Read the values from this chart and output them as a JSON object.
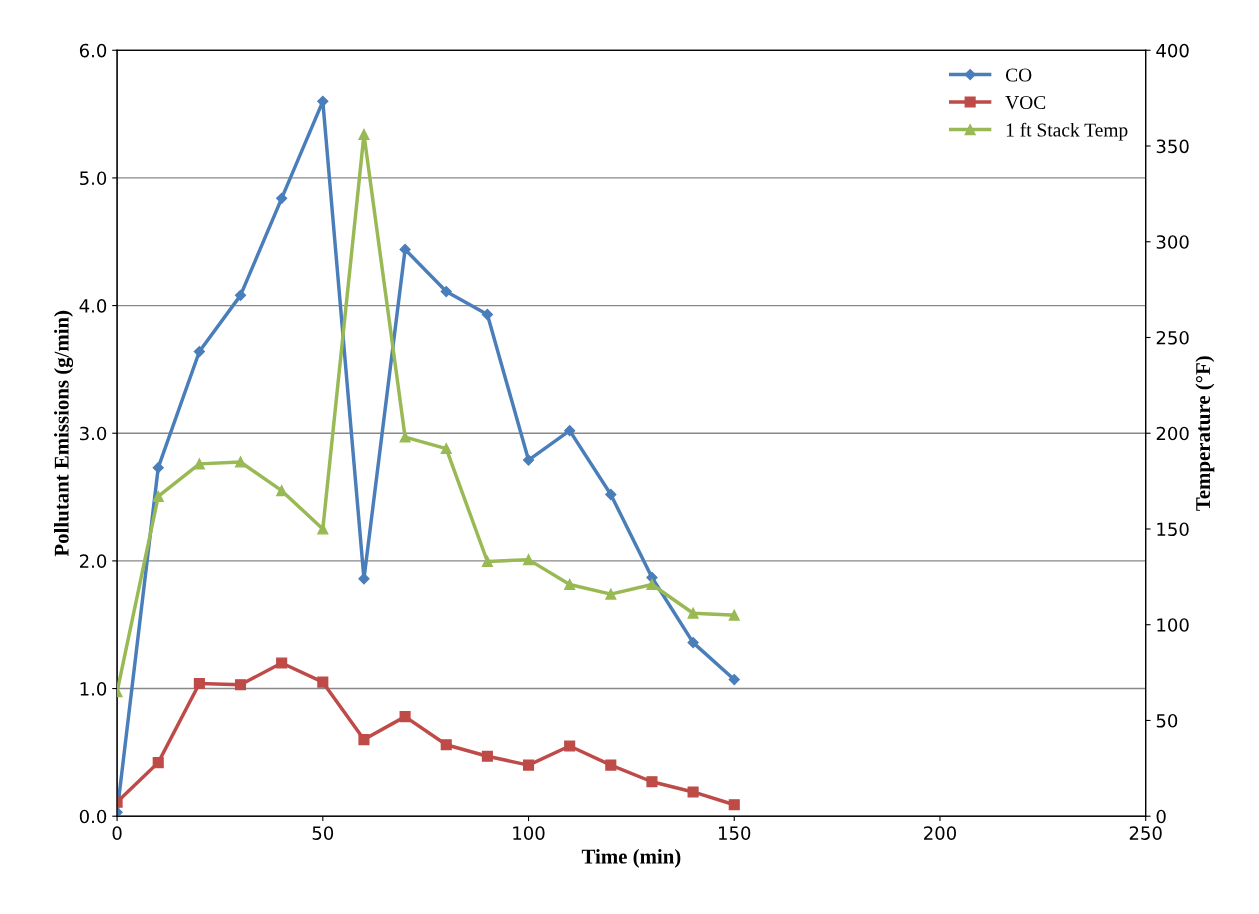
{
  "chart_data": {
    "type": "line",
    "xlabel": "Time (min)",
    "ylabel": "Pollutant Emissions (g/min)",
    "y2label": "Temperature (°F)",
    "x": [
      0,
      10,
      20,
      30,
      40,
      50,
      60,
      70,
      80,
      90,
      100,
      110,
      120,
      130,
      140,
      150
    ],
    "series": [
      {
        "name": "CO",
        "color": "#4a7ebb",
        "marker": "diamond",
        "values": [
          0.03,
          2.73,
          3.64,
          4.08,
          4.84,
          5.6,
          1.86,
          4.44,
          4.11,
          3.93,
          2.79,
          3.02,
          2.52,
          1.87,
          1.36,
          1.07
        ]
      },
      {
        "name": "VOC",
        "color": "#be4b48",
        "marker": "square",
        "values": [
          0.11,
          0.42,
          1.04,
          1.03,
          1.2,
          1.05,
          0.6,
          0.78,
          0.56,
          0.47,
          0.4,
          0.55,
          0.4,
          0.27,
          0.19,
          0.09
        ]
      },
      {
        "name": "1 ft Stack Temp",
        "color": "#98b954",
        "marker": "triangle",
        "axis": "y2",
        "values": [
          65,
          167,
          184,
          185,
          170,
          150,
          356,
          198,
          192,
          133,
          134,
          121,
          116,
          121,
          106,
          105
        ]
      }
    ],
    "xlim": [
      0,
      250
    ],
    "xticks": [
      0,
      50,
      100,
      150,
      200,
      250
    ],
    "ylim": [
      0,
      6
    ],
    "yticks": [
      {
        "value": 0,
        "label": "0.0"
      },
      {
        "value": 1,
        "label": "1.0"
      },
      {
        "value": 2,
        "label": "2.0"
      },
      {
        "value": 3,
        "label": "3.0"
      },
      {
        "value": 4,
        "label": "4.0"
      },
      {
        "value": 5,
        "label": "5.0"
      },
      {
        "value": 6,
        "label": "6.0"
      }
    ],
    "y2lim": [
      0,
      400
    ],
    "y2ticks": [
      0,
      50,
      100,
      150,
      200,
      250,
      300,
      350,
      400
    ],
    "grid": "y",
    "legend": "top right",
    "line_style": "solid"
  }
}
